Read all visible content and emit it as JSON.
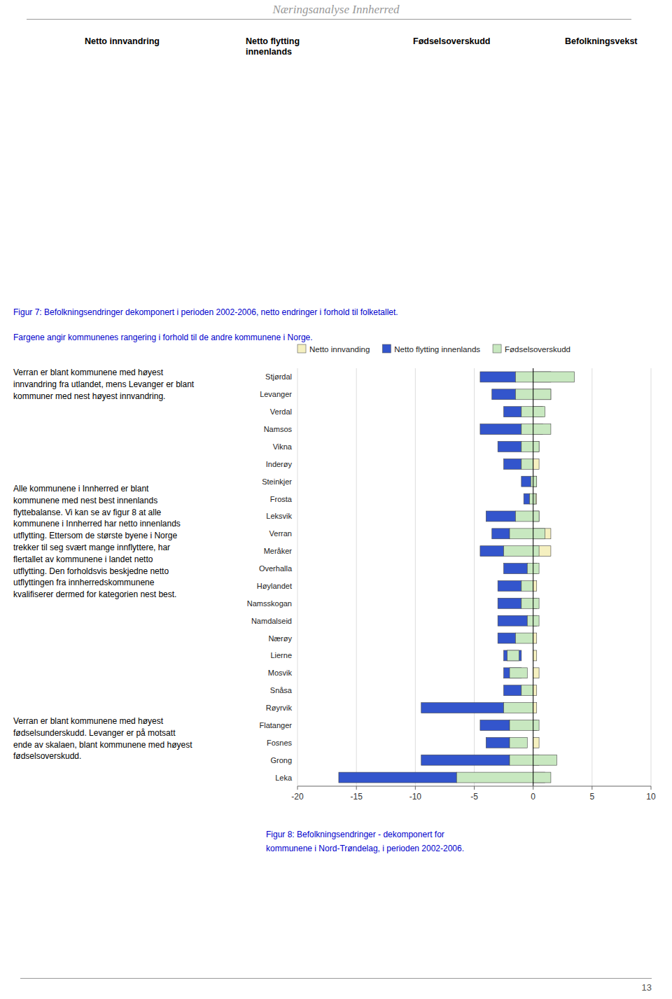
{
  "page": {
    "title": "Næringsanalyse Innherred",
    "map_labels": [
      "Netto innvandring",
      "Netto flytting\ninnenlands",
      "Fødselsoverskudd",
      "Befolkningsvekst"
    ],
    "figure_caption": [
      "Figur 7: Befolkningsendringer dekomponert i perioden 2002-2006, netto endringer i forhold til folketallet.",
      "Fargene angir kommunenes rangering i forhold til de andre kommunene i Norge."
    ],
    "body_text": [
      "Verran er blant kommunene med høyest\ninnvandring fra utlandet, mens Levanger er blant\nkommuner med nest høyest innvandring.",
      "Alle kommunene i Innherred er blant\nkommunene med nest best innenlands\nflyttebalanse. Vi kan se av figur 8 at alle\nkommunene i Innherred har netto innenlands\nutflytting. Ettersom de største byene i Norge\ntrekker til seg svært mange innflyttere, har\nflertallet av kommunene i landet netto\nutflytting. Den forholdsvis beskjedne netto\nutflyttingen fra innherredskommunene\nkvalifiserer dermed for kategorien nest best.",
      "Verran er blant kommunene med høyest\nfødselsunderskudd. Levanger er på motsatt\nende av skalaen, blant kommunene med høyest\nfødselsoverskudd."
    ],
    "page_number": "13",
    "background_color": "#ffffff",
    "text_color": "#000000",
    "caption_color": "#0000cc",
    "rule_color": "#999999"
  },
  "chart_data": {
    "type": "bar",
    "orientation": "horizontal",
    "caption": [
      "Figur 8: Befolkningsendringer - dekomponert for",
      "kommunene i Nord-Trøndelag, i perioden 2002-2006."
    ],
    "categories": [
      "Stjørdal",
      "Levanger",
      "Verdal",
      "Namsos",
      "Vikna",
      "Inderøy",
      "Steinkjer",
      "Frosta",
      "Leksvik",
      "Verran",
      "Meråker",
      "Overhalla",
      "Høylandet",
      "Namsskogan",
      "Namdalseid",
      "Nærøy",
      "Lierne",
      "Mosvik",
      "Snåsa",
      "Røyrvik",
      "Flatanger",
      "Fosnes",
      "Grong",
      "Leka"
    ],
    "series": [
      {
        "name": "Netto innvanding",
        "color": "#f5f0c0",
        "values": [
          1.5,
          1.5,
          0.8,
          0.8,
          0.5,
          0.5,
          0.3,
          0.3,
          0.5,
          1.5,
          1.5,
          0.3,
          0.3,
          0.3,
          0.3,
          0.3,
          0.3,
          0.5,
          0.3,
          0.3,
          0.3,
          0.5,
          0.5,
          1.0
        ]
      },
      {
        "name": "Netto flytting innenlands",
        "color": "#3355cc",
        "values": [
          3.0,
          2.0,
          1.5,
          3.5,
          2.0,
          1.5,
          0.8,
          0.5,
          2.5,
          1.5,
          2.0,
          2.0,
          2.0,
          2.0,
          2.5,
          1.5,
          1.5,
          1.5,
          1.5,
          7.0,
          2.5,
          2.0,
          7.5,
          10.0
        ],
        "base": [
          -4.5,
          -3.5,
          -2.5,
          -4.5,
          -3.0,
          -2.5,
          -1.0,
          -0.8,
          -4.0,
          -3.5,
          -4.5,
          -2.5,
          -3.0,
          -3.0,
          -3.0,
          -3.0,
          -2.5,
          -2.5,
          -2.5,
          -9.5,
          -4.5,
          -4.0,
          -9.5,
          -16.5
        ]
      },
      {
        "name": "Fødselsoverskudd",
        "color": "#c8e8c0",
        "values": [
          5.0,
          3.0,
          2.0,
          2.5,
          1.5,
          1.0,
          0.5,
          0.5,
          2.0,
          3.0,
          3.0,
          1.0,
          1.0,
          1.5,
          1.0,
          1.5,
          1.0,
          1.5,
          1.0,
          2.5,
          2.5,
          1.5,
          4.0,
          8.0
        ],
        "base": [
          -1.5,
          -1.5,
          -1.0,
          -1.0,
          -1.0,
          -1.0,
          -0.2,
          -0.3,
          -1.5,
          -2.0,
          -2.5,
          -0.5,
          -1.0,
          -1.0,
          -0.5,
          -1.5,
          -2.2,
          -2.0,
          -1.0,
          -2.5,
          -2.0,
          -2.0,
          -2.0,
          -6.5
        ]
      }
    ],
    "xlim": [
      -20,
      10
    ],
    "xticks": [
      -20,
      -15,
      -10,
      -5,
      0,
      5,
      10
    ],
    "grid": true,
    "legend": "top"
  }
}
